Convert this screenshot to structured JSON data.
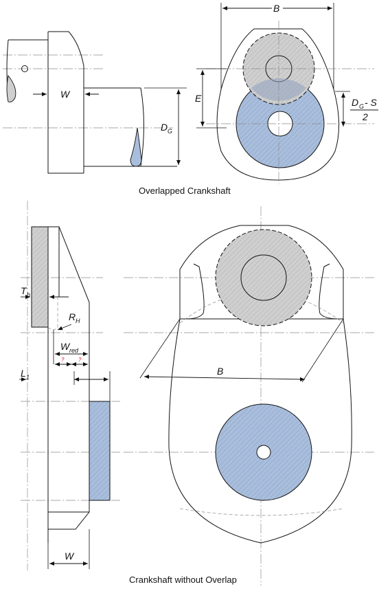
{
  "figures": {
    "overlapped": {
      "caption": "Overlapped Crankshaft",
      "labels": {
        "B": "B",
        "W": "W",
        "E": "E",
        "DG_main": "D",
        "DG_sub": "G",
        "fraction_num_main": "D",
        "fraction_num_sub": "G",
        "fraction_num_rest": "- S",
        "fraction_den": "2"
      }
    },
    "no_overlap": {
      "caption": "Crankshaft without Overlap",
      "labels": {
        "Th_main": "T",
        "Th_sub": "h",
        "RH_main": "R",
        "RH_sub": "H",
        "Wred_main": "W",
        "Wred_sub": "red",
        "q1": "?",
        "q2": "?",
        "L1_main": "L",
        "L1_sub": "1",
        "B": "B",
        "W": "W"
      }
    }
  },
  "colors": {
    "pin_fill": "#a9bedc",
    "journal_fill": "#cfcfcf",
    "pin_hatch": "#7f97bd",
    "journal_hatch": "#a8a8a8"
  }
}
